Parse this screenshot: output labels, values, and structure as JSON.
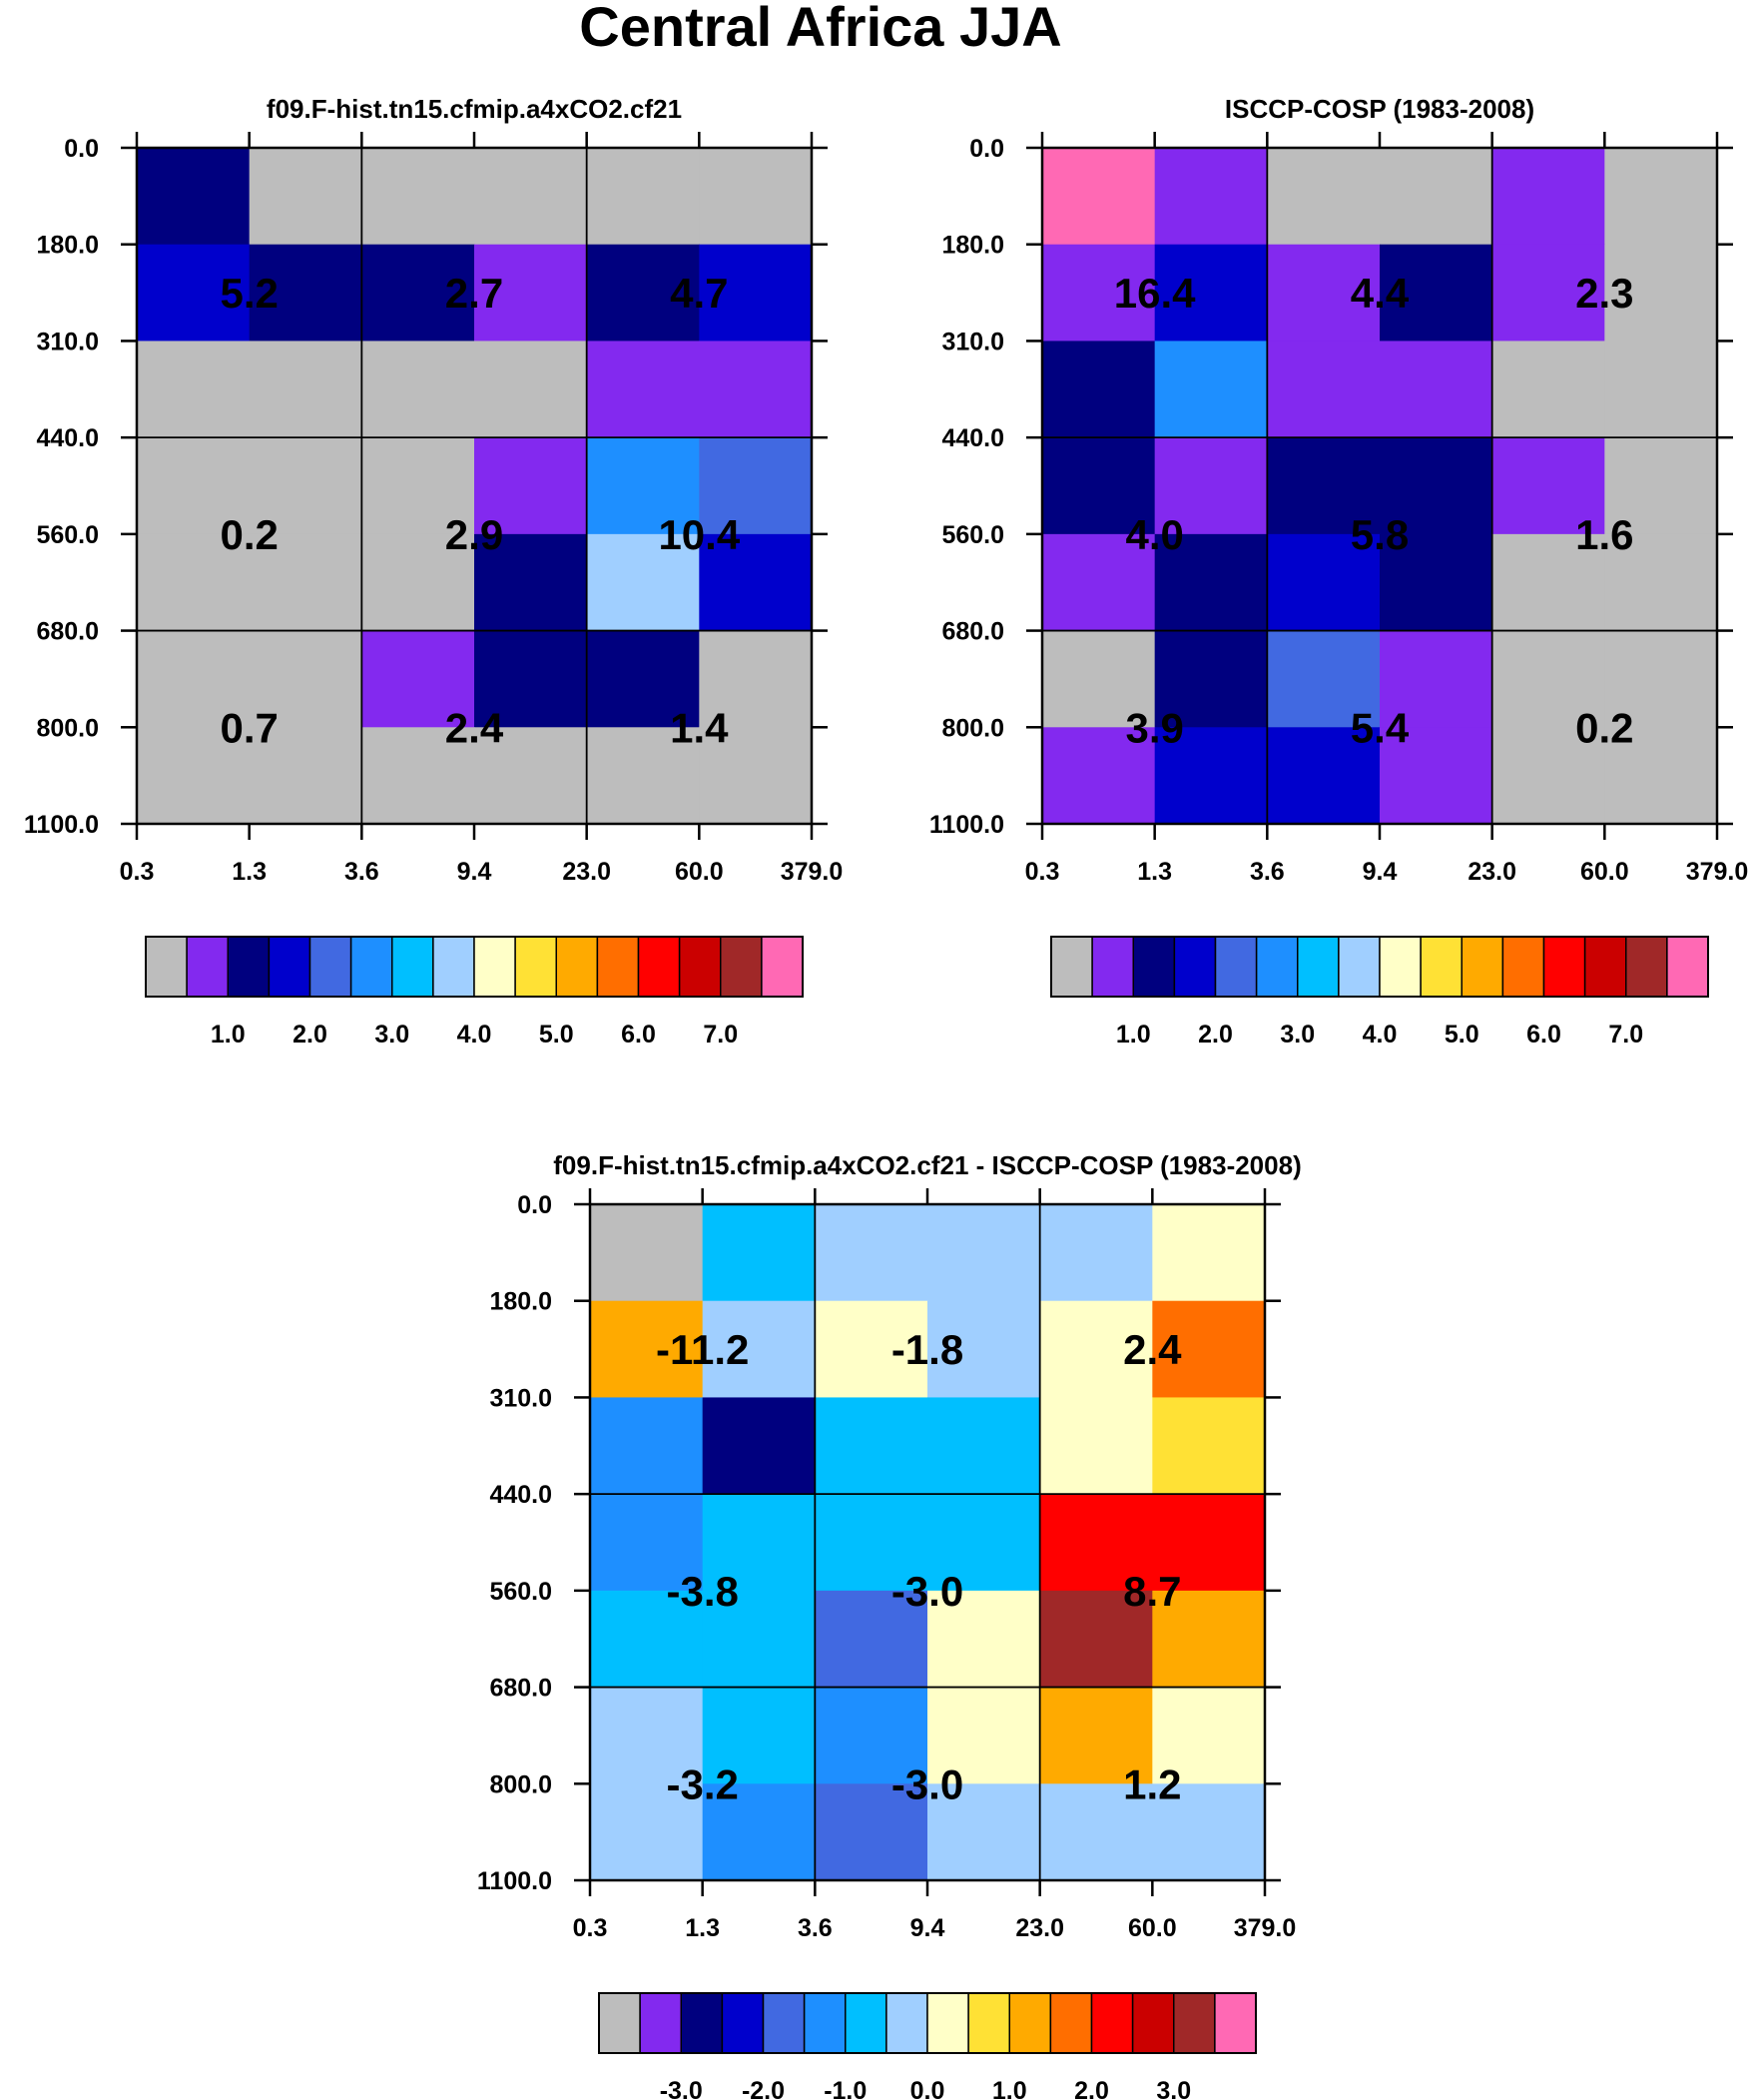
{
  "title": "Central Africa JJA",
  "colors": {
    "bins": [
      "#bdbdbd",
      "#8329ef",
      "#00007f",
      "#0000cc",
      "#4169e1",
      "#1e8fff",
      "#00bfff",
      "#a0cfff",
      "#ffffc8",
      "#ffe135",
      "#ffaa00",
      "#ff6e00",
      "#ff0000",
      "#cb0000",
      "#a02828",
      "#ff69b4"
    ],
    "background": "#ffffff",
    "grid": "#000000"
  },
  "chart_data": [
    {
      "type": "heatmap",
      "title": "f09.F-hist.tn15.cfmip.a4xCO2.cf21",
      "x_tick_labels": [
        "0.3",
        "1.3",
        "3.6",
        "9.4",
        "23.0",
        "60.0",
        "379.0"
      ],
      "y_tick_labels": [
        "0.0",
        "180.0",
        "310.0",
        "440.0",
        "560.0",
        "680.0",
        "800.0",
        "1100.0"
      ],
      "cells_color_index": [
        [
          2,
          0,
          0,
          0,
          0,
          0
        ],
        [
          3,
          2,
          2,
          1,
          2,
          3
        ],
        [
          0,
          0,
          0,
          0,
          1,
          1
        ],
        [
          0,
          0,
          0,
          1,
          5,
          4
        ],
        [
          0,
          0,
          0,
          2,
          7,
          3
        ],
        [
          0,
          0,
          1,
          2,
          2,
          0
        ],
        [
          0,
          0,
          0,
          0,
          0,
          0
        ]
      ],
      "group_values": [
        [
          "5.2",
          "2.7",
          "4.7"
        ],
        [
          "0.2",
          "2.9",
          "10.4"
        ],
        [
          "0.7",
          "2.4",
          "1.4"
        ]
      ],
      "colorbar": {
        "labels": [
          "1.0",
          "2.0",
          "3.0",
          "4.0",
          "5.0",
          "6.0",
          "7.0"
        ]
      }
    },
    {
      "type": "heatmap",
      "title": "ISCCP-COSP (1983-2008)",
      "x_tick_labels": [
        "0.3",
        "1.3",
        "3.6",
        "9.4",
        "23.0",
        "60.0",
        "379.0"
      ],
      "y_tick_labels": [
        "0.0",
        "180.0",
        "310.0",
        "440.0",
        "560.0",
        "680.0",
        "800.0",
        "1100.0"
      ],
      "cells_color_index": [
        [
          15,
          1,
          0,
          0,
          1,
          0
        ],
        [
          1,
          3,
          1,
          2,
          1,
          0
        ],
        [
          2,
          5,
          1,
          1,
          0,
          0
        ],
        [
          2,
          1,
          2,
          2,
          1,
          0
        ],
        [
          1,
          2,
          3,
          2,
          0,
          0
        ],
        [
          0,
          2,
          4,
          1,
          0,
          0
        ],
        [
          1,
          3,
          3,
          1,
          0,
          0
        ]
      ],
      "group_values": [
        [
          "16.4",
          "4.4",
          "2.3"
        ],
        [
          "4.0",
          "5.8",
          "1.6"
        ],
        [
          "3.9",
          "5.4",
          "0.2"
        ]
      ],
      "colorbar": {
        "labels": [
          "1.0",
          "2.0",
          "3.0",
          "4.0",
          "5.0",
          "6.0",
          "7.0"
        ]
      }
    },
    {
      "type": "heatmap",
      "title": "f09.F-hist.tn15.cfmip.a4xCO2.cf21 - ISCCP-COSP (1983-2008)",
      "x_tick_labels": [
        "0.3",
        "1.3",
        "3.6",
        "9.4",
        "23.0",
        "60.0",
        "379.0"
      ],
      "y_tick_labels": [
        "0.0",
        "180.0",
        "310.0",
        "440.0",
        "560.0",
        "680.0",
        "800.0",
        "1100.0"
      ],
      "cells_color_index": [
        [
          0,
          6,
          7,
          7,
          7,
          8
        ],
        [
          10,
          7,
          8,
          7,
          8,
          11
        ],
        [
          5,
          2,
          6,
          6,
          8,
          9
        ],
        [
          5,
          6,
          6,
          6,
          12,
          12
        ],
        [
          6,
          6,
          4,
          8,
          14,
          10
        ],
        [
          7,
          6,
          5,
          8,
          10,
          8
        ],
        [
          7,
          5,
          4,
          7,
          7,
          7
        ]
      ],
      "group_values": [
        [
          "-11.2",
          "-1.8",
          "2.4"
        ],
        [
          "-3.8",
          "-3.0",
          "8.7"
        ],
        [
          "-3.2",
          "-3.0",
          "1.2"
        ]
      ],
      "colorbar": {
        "labels": [
          "-3.0",
          "-2.0",
          "-1.0",
          "0.0",
          "1.0",
          "2.0",
          "3.0"
        ]
      }
    }
  ]
}
